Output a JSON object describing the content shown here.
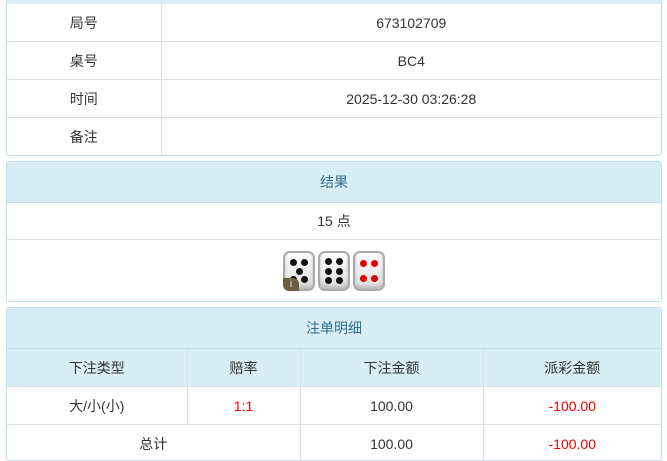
{
  "info": {
    "rows": [
      {
        "label": "局号",
        "value": "673102709"
      },
      {
        "label": "桌号",
        "value": "BC4"
      },
      {
        "label": "时间",
        "value": "2025-12-30 03:26:28"
      },
      {
        "label": "备注",
        "value": ""
      }
    ]
  },
  "result": {
    "title": "结果",
    "points": "15 点",
    "dice": [
      5,
      6,
      4
    ],
    "info_icon": "i"
  },
  "bets": {
    "title": "注单明细",
    "headers": [
      "下注类型",
      "赔率",
      "下注金额",
      "派彩金额"
    ],
    "row": {
      "type": "大/小(小)",
      "odds": "1:1",
      "amount": "100.00",
      "payout": "-100.00"
    },
    "total": {
      "label": "总计",
      "amount": "100.00",
      "payout": "-100.00"
    }
  },
  "colors": {
    "header_bg": "#d9edf7",
    "negative": "#e00000"
  }
}
